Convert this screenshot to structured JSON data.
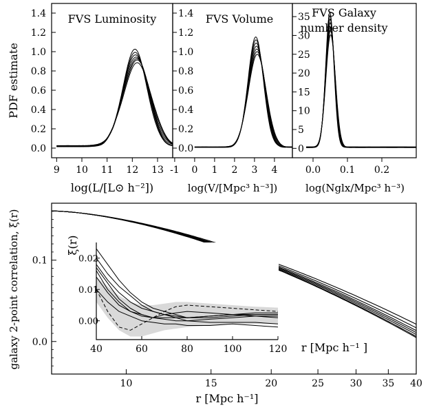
{
  "chart_data": [
    {
      "id": "luminosity",
      "type": "line",
      "title": "FVS Luminosity",
      "xlabel": "log(L/[L⊙ h⁻²])",
      "ylabel": "PDF estimate",
      "xticks": [
        "9",
        "10",
        "11",
        "12",
        "13"
      ],
      "yticks": [
        "0.0",
        "0.2",
        "0.4",
        "0.6",
        "0.8",
        "1.0",
        "1.2",
        "1.4"
      ],
      "xlim": [
        8.8,
        13.6
      ],
      "ylim": [
        -0.1,
        1.5
      ],
      "grid": false,
      "curve": {
        "center": 12.15,
        "peaks": [
          1.0,
          0.97,
          0.95,
          0.93,
          0.91,
          0.89,
          0.86
        ],
        "width": 0.52,
        "baseline": 0.02
      }
    },
    {
      "id": "volume",
      "type": "line",
      "title": "FVS Volume",
      "xlabel": "log(V/[Mpc³ h⁻³])",
      "yticks": [
        "0.0",
        "0.2",
        "0.4",
        "0.6",
        "0.8",
        "1.0",
        "1.2",
        "1.4"
      ],
      "xticks": [
        "-1",
        "0",
        "1",
        "2",
        "3",
        "4"
      ],
      "xlim": [
        -1.1,
        4.9
      ],
      "ylim": [
        -0.1,
        1.5
      ],
      "grid": false,
      "curve": {
        "center": 3.1,
        "peaks": [
          1.14,
          1.11,
          1.08,
          1.05,
          1.02,
          0.99,
          0.96
        ],
        "width": 0.42,
        "baseline": 0.01
      }
    },
    {
      "id": "number_density",
      "type": "line",
      "title": "FVS Galaxy",
      "title2": "number density",
      "xlabel": "log(Nglx/Mpc³ h⁻³)",
      "yticks": [
        "0",
        "5",
        "10",
        "15",
        "20",
        "25",
        "30",
        "35"
      ],
      "xticks": [
        "0.0",
        "0.1",
        "0.2"
      ],
      "xlim": [
        -0.06,
        0.3
      ],
      "ylim": [
        -2.5,
        38.5
      ],
      "grid": false,
      "curve": {
        "center": 0.05,
        "peaks": [
          36,
          35,
          34,
          33,
          32,
          31,
          30
        ],
        "width": 0.013,
        "baseline": 0.3
      }
    },
    {
      "id": "correlation",
      "type": "line",
      "xlabel": "r [Mpc h⁻¹]",
      "ylabel": "galaxy 2-point correlation, ξ(r)",
      "xscale": "log",
      "xticks": [
        "10",
        "15",
        "20",
        "25",
        "30",
        "35",
        "40"
      ],
      "yticks": [
        "0.0",
        "0.1"
      ],
      "xlim": [
        7,
        40
      ],
      "ylim": [
        -0.04,
        0.17
      ],
      "grid": false,
      "series_fn": {
        "a": 0.1605,
        "b": 0.0043,
        "x0": 7,
        "ends": [
          0.023,
          0.018,
          0.014,
          0.011,
          0.008,
          0.005,
          0.003
        ]
      }
    },
    {
      "id": "correlation_inset",
      "type": "area",
      "ylabel": "ξ(r)",
      "xlabel": "r [Mpc h⁻¹ ]",
      "xticks": [
        "40",
        "60",
        "80",
        "100",
        "120"
      ],
      "yticks": [
        "0.00",
        "0.01",
        "0.02"
      ],
      "xlim": [
        40,
        120
      ],
      "ylim": [
        -0.006,
        0.025
      ],
      "grid": false,
      "band": {
        "x": [
          40,
          45,
          50,
          55,
          60,
          65,
          70,
          75,
          80,
          90,
          100,
          110,
          120
        ],
        "upper": [
          0.014,
          0.011,
          0.008,
          0.006,
          0.005,
          0.005,
          0.0055,
          0.006,
          0.006,
          0.0055,
          0.005,
          0.0045,
          0.0042
        ],
        "lower": [
          0.006,
          0.001,
          -0.003,
          -0.005,
          -0.005,
          -0.004,
          -0.003,
          -0.0025,
          -0.002,
          -0.0015,
          -0.001,
          -0.001,
          -0.001
        ]
      },
      "series": [
        {
          "values": [
            0.023,
            0.018,
            0.013,
            0.009,
            0.006,
            0.004,
            0.003,
            0.002,
            0.001,
            0.001,
            0.0015,
            0.002,
            0.002
          ]
        },
        {
          "values": [
            0.02,
            0.015,
            0.011,
            0.008,
            0.005,
            0.003,
            0.002,
            0.0015,
            0.001,
            0.0015,
            0.002,
            0.0025,
            0.0025
          ]
        },
        {
          "values": [
            0.018,
            0.013,
            0.009,
            0.006,
            0.004,
            0.003,
            0.002,
            0.001,
            0.0,
            0.0005,
            0.001,
            0.0015,
            0.0015
          ]
        },
        {
          "values": [
            0.017,
            0.012,
            0.007,
            0.004,
            0.002,
            0.001,
            0.001,
            0.001,
            0.001,
            0.0015,
            0.002,
            0.002,
            0.002
          ]
        },
        {
          "values": [
            0.016,
            0.01,
            0.006,
            0.003,
            0.0015,
            0.001,
            0.002,
            0.0025,
            0.003,
            0.0025,
            0.002,
            0.0015,
            0.001
          ]
        },
        {
          "values": [
            0.014,
            0.009,
            0.005,
            0.003,
            0.002,
            0.001,
            0.0005,
            0.0,
            0.0,
            -0.0005,
            -0.0005,
            -0.0005,
            -0.001
          ]
        },
        {
          "values": [
            0.01,
            0.006,
            0.003,
            0.0015,
            0.0,
            -0.0005,
            -0.001,
            -0.001,
            -0.0015,
            -0.0015,
            -0.001,
            -0.0015,
            -0.002
          ]
        }
      ],
      "dashed": {
        "values": [
          0.01,
          0.003,
          -0.002,
          -0.003,
          -0.001,
          0.001,
          0.003,
          0.0045,
          0.005,
          0.0045,
          0.004,
          0.0035,
          0.003
        ]
      }
    }
  ]
}
